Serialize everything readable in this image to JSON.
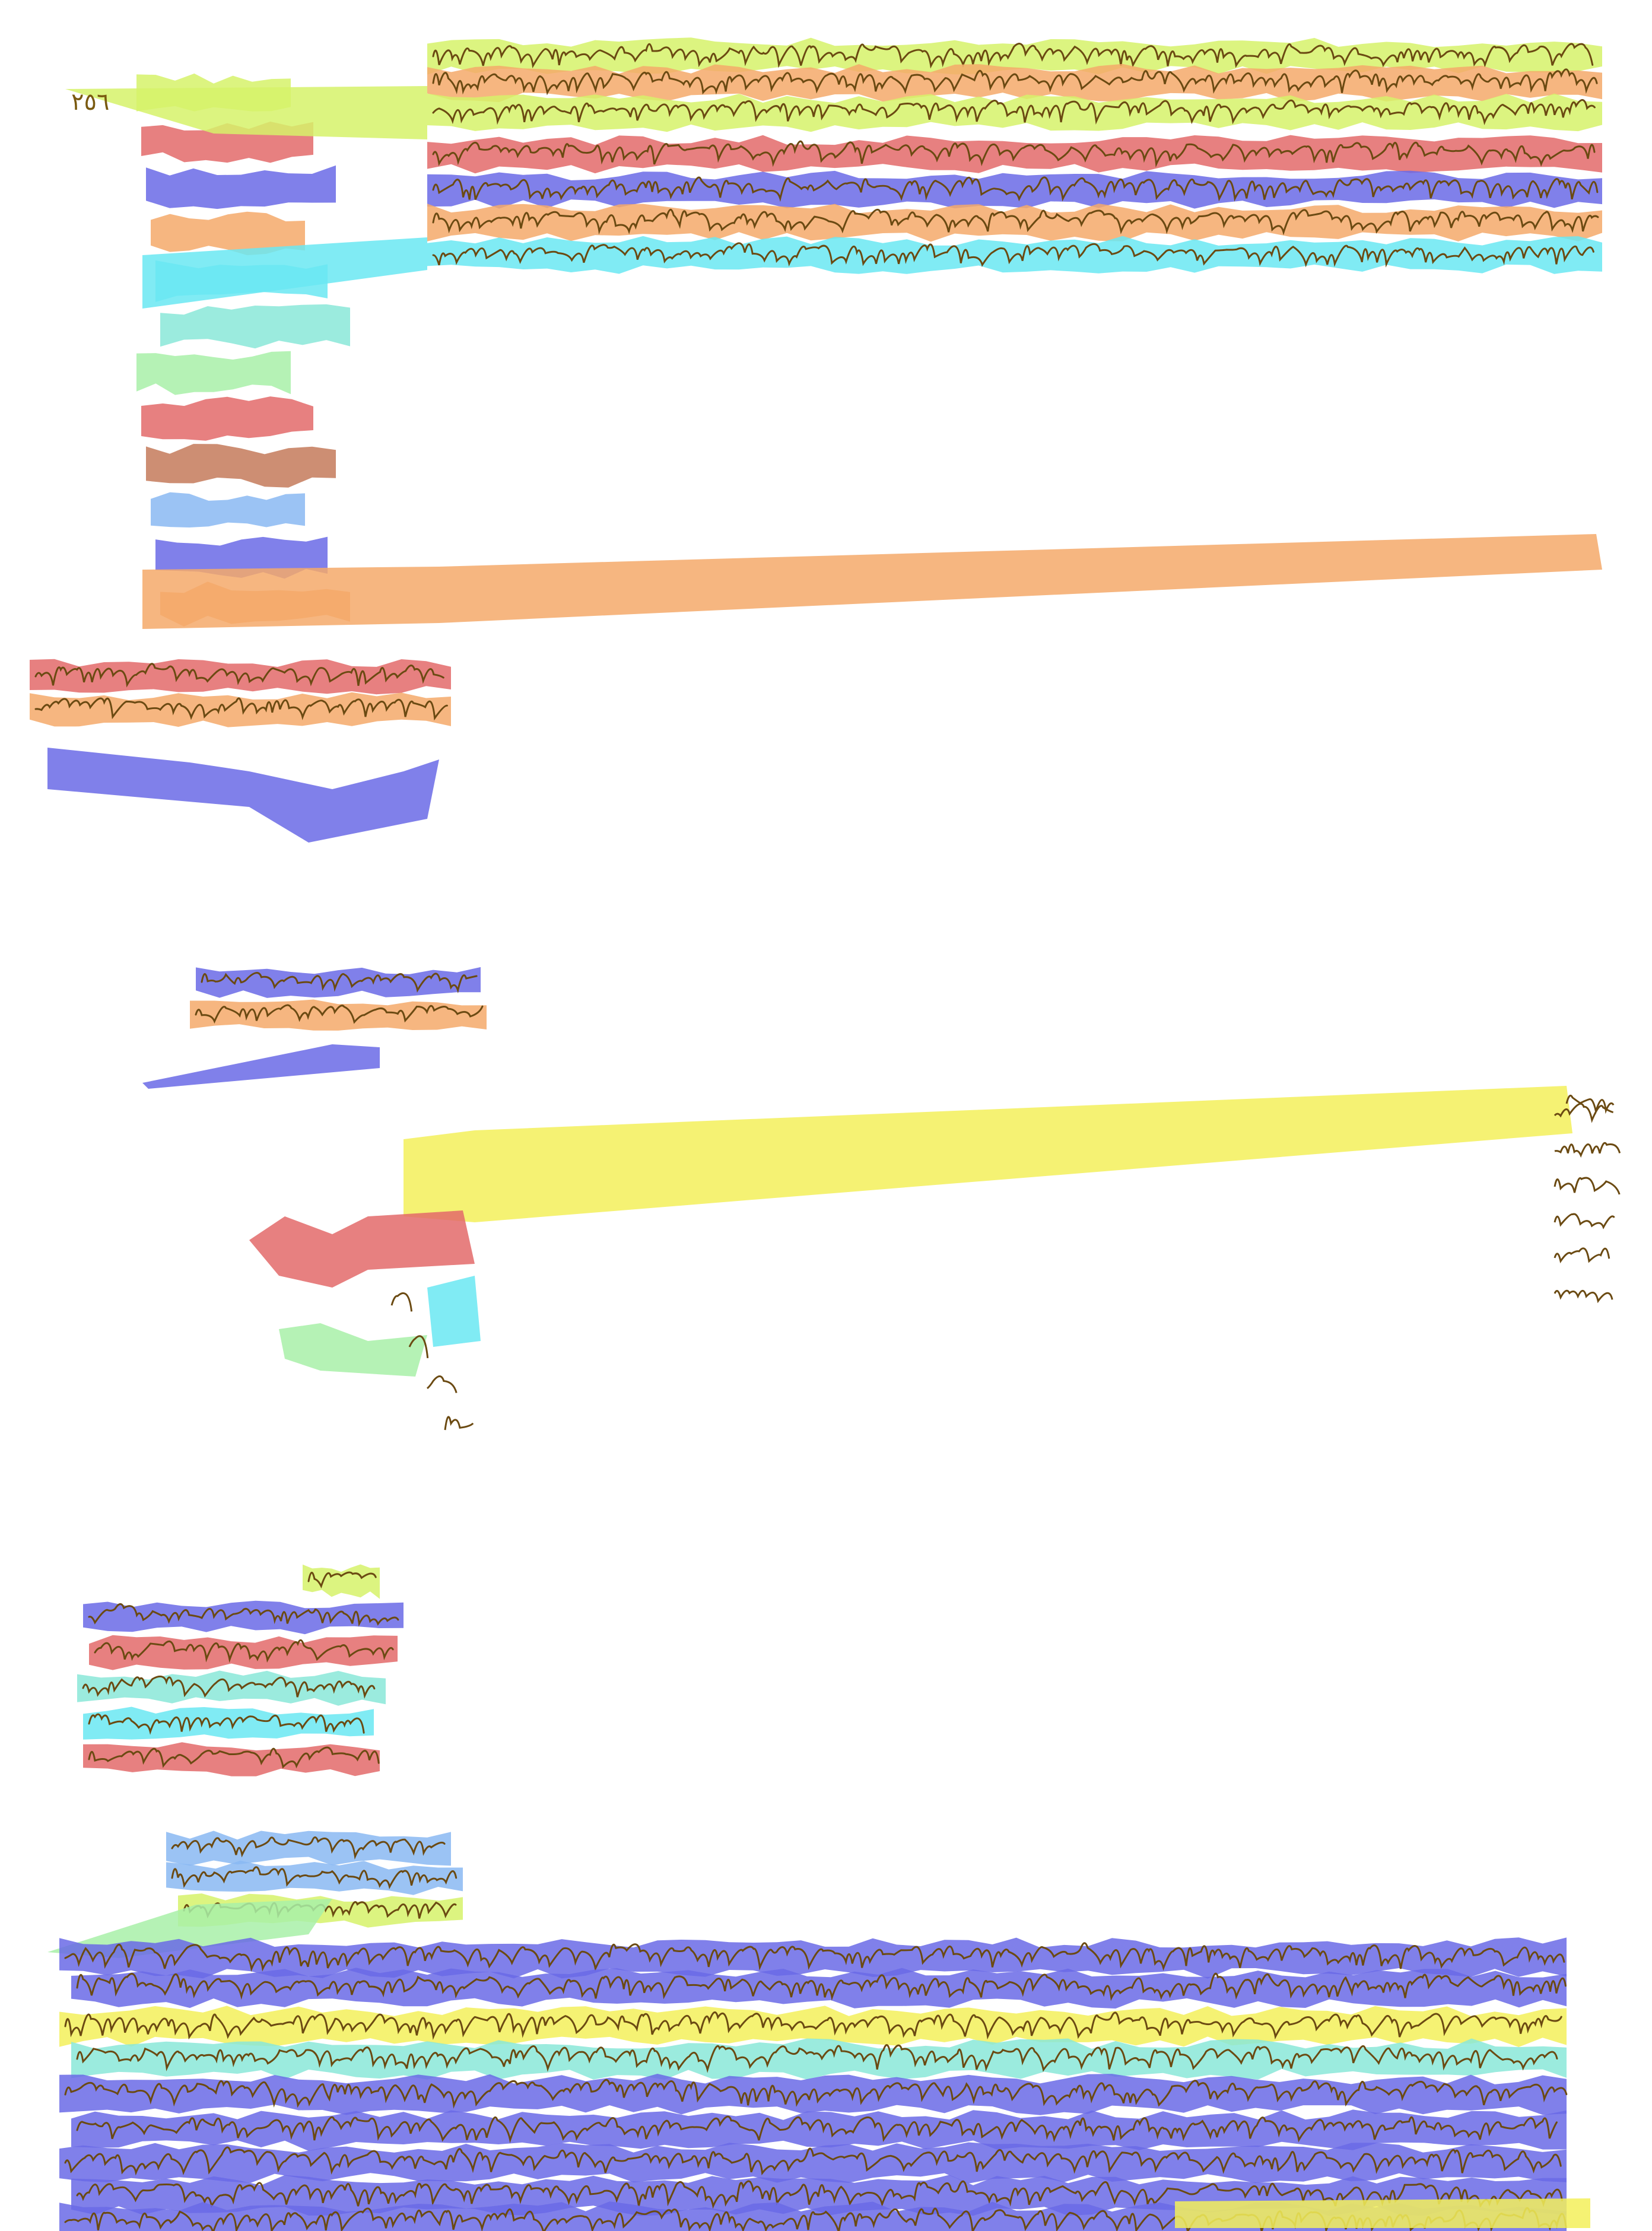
{
  "page": {
    "background": "#ffffff",
    "folio_number": "٢٥٦",
    "ink_color": "#6b4a12",
    "description_note": ""
  },
  "palette": {
    "yellow": "#f3f05a",
    "yellow_green": "#d6f26a",
    "red": "#e36a6a",
    "blue": "#6a6ae6",
    "orange": "#f4a96a",
    "cyan": "#6ae8f2",
    "teal": "#8ae8d8",
    "light_green": "#a8f0a8",
    "brown": "#c47a5a",
    "light_blue": "#8ab8f2"
  },
  "regions": {
    "main_text_lines": 9,
    "left_margin_vertical_lines": 12,
    "margin_block_1_lines": 3,
    "margin_block_2_lines": 3,
    "margin_block_3_lines": 6,
    "margin_block_4_lines": 4,
    "bottom_text_lines": 12
  }
}
